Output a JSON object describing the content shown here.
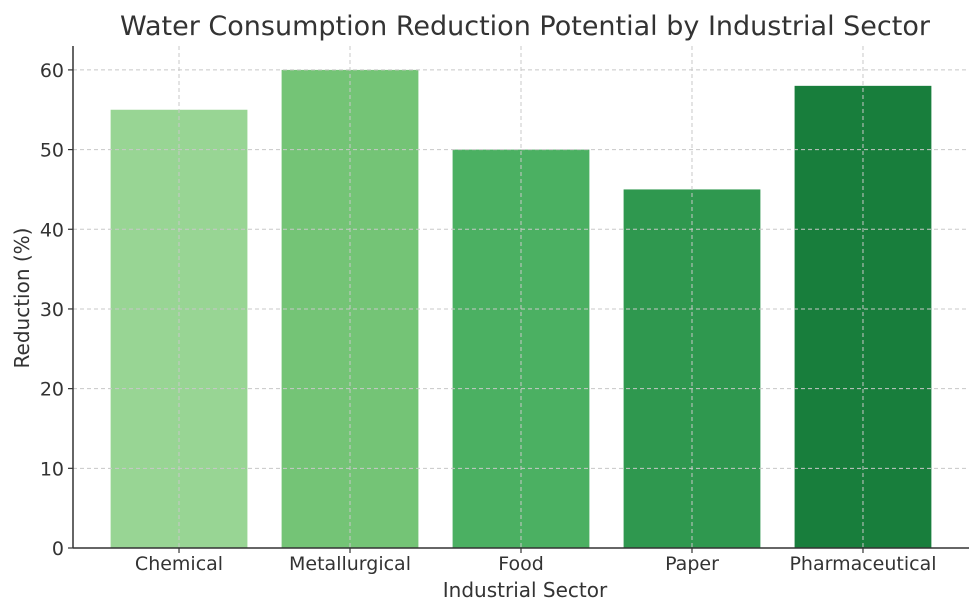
{
  "chart_data": {
    "type": "bar",
    "title": "Water Consumption Reduction Potential by Industrial Sector",
    "xlabel": "Industrial Sector",
    "ylabel": "Reduction (%)",
    "categories": [
      "Chemical",
      "Metallurgical",
      "Food",
      "Paper",
      "Pharmaceutical"
    ],
    "values": [
      55,
      60,
      50,
      45,
      58
    ],
    "colors": [
      "#98d594",
      "#74c476",
      "#4bb062",
      "#2f984f",
      "#187e3c"
    ],
    "ylim": [
      0,
      63
    ],
    "yticks": [
      0,
      10,
      20,
      30,
      40,
      50,
      60
    ],
    "grid": true,
    "legend": "none"
  }
}
